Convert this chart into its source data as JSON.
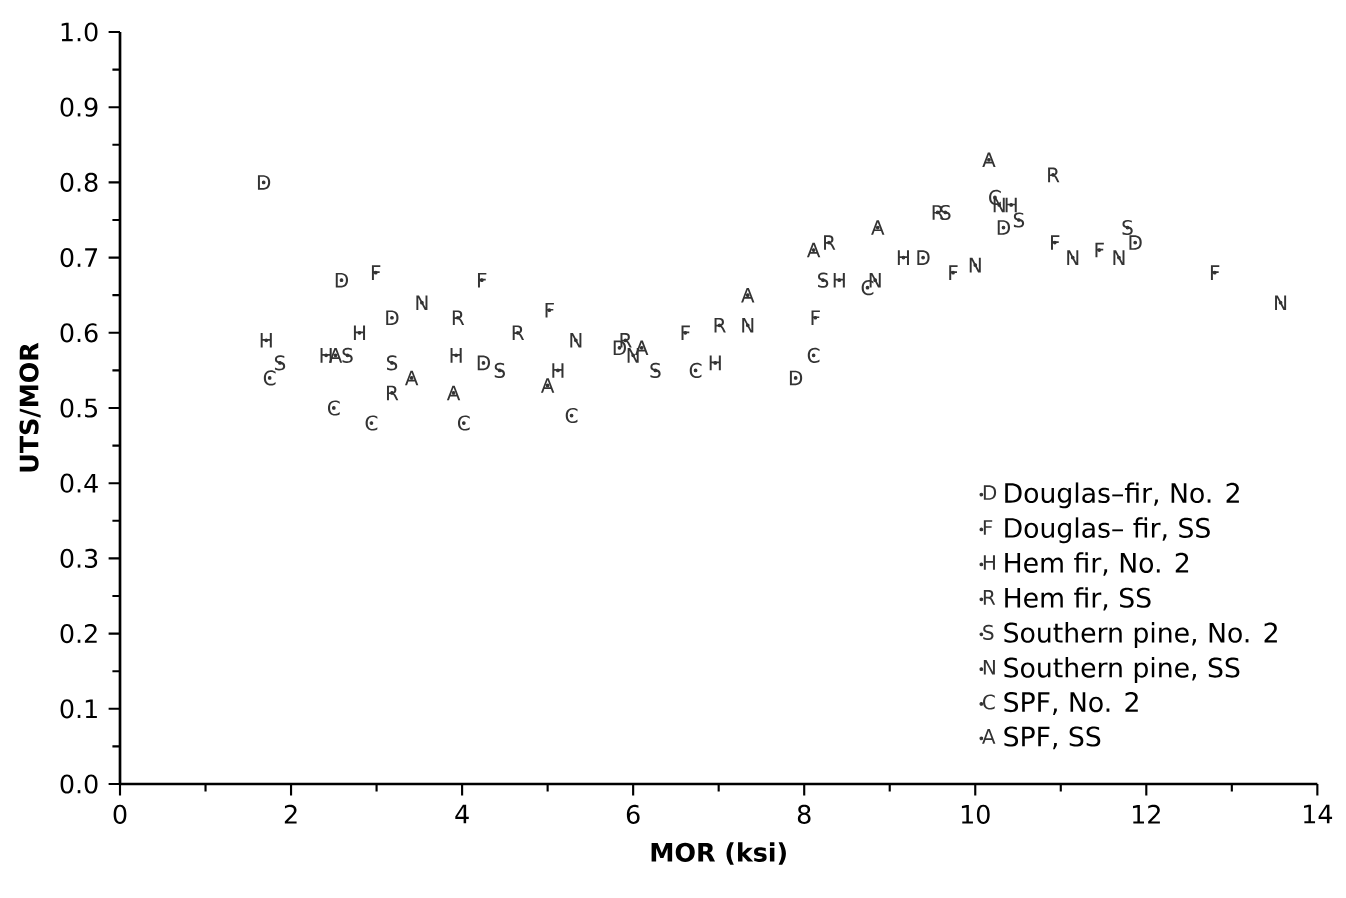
{
  "chart_data": {
    "type": "scatter",
    "xlabel": "MOR (ksi)",
    "ylabel": "UTS/MOR",
    "xlim": [
      0,
      14
    ],
    "xticks": [
      0,
      2,
      4,
      6,
      8,
      10,
      12,
      14
    ],
    "ylim": [
      0,
      1
    ],
    "yticks": [
      {
        "value": 0,
        "label": "0.0"
      },
      {
        "value": 0.1,
        "label": "0.1"
      },
      {
        "value": 0.2,
        "label": "0.2"
      },
      {
        "value": 0.3,
        "label": "0.3"
      },
      {
        "value": 0.4,
        "label": "0.4"
      },
      {
        "value": 0.5,
        "label": "0.5"
      },
      {
        "value": 0.6,
        "label": "0.6"
      },
      {
        "value": 0.7,
        "label": "0.7"
      },
      {
        "value": 0.8,
        "label": "0.8"
      },
      {
        "value": 0.9,
        "label": "0.9"
      },
      {
        "value": 1.0,
        "label": "1.0"
      }
    ],
    "legend": "bottom right",
    "series": [
      {
        "name": "Douglas–fir, No. 2",
        "color": "#333333",
        "x": [
          1.68,
          2.59,
          3.18,
          4.25,
          5.84,
          7.9,
          9.39,
          10.33,
          11.87
        ],
        "values": [
          0.8,
          0.67,
          0.62,
          0.56,
          0.58,
          0.54,
          0.7,
          0.74,
          0.72
        ],
        "value_labels": [
          "D",
          "D",
          "D",
          "D",
          "D",
          "D",
          "D",
          "D",
          "D"
        ]
      },
      {
        "name": "Douglas– fir, SS",
        "color": "#333333",
        "x": [
          2.99,
          4.23,
          5.02,
          6.61,
          8.13,
          9.74,
          10.93,
          11.45,
          12.8
        ],
        "values": [
          0.68,
          0.67,
          0.63,
          0.6,
          0.62,
          0.68,
          0.72,
          0.71,
          0.68
        ],
        "value_labels": [
          "F",
          "F",
          "F",
          "F",
          "F",
          "F",
          "F",
          "F",
          "F"
        ]
      },
      {
        "name": "Hem fir, No. 2",
        "color": "#333333",
        "x": [
          1.71,
          2.41,
          2.8,
          3.93,
          5.12,
          6.96,
          8.41,
          9.16,
          10.42
        ],
        "values": [
          0.59,
          0.57,
          0.6,
          0.57,
          0.55,
          0.56,
          0.67,
          0.7,
          0.77
        ],
        "value_labels": [
          "H",
          "H",
          "H",
          "H",
          "H",
          "H",
          "H",
          "H",
          "H"
        ]
      },
      {
        "name": "Hem fir, SS",
        "color": "#333333",
        "x": [
          3.95,
          4.65,
          3.18,
          5.91,
          7.01,
          8.29,
          9.56,
          10.91
        ],
        "values": [
          0.62,
          0.6,
          0.52,
          0.59,
          0.61,
          0.72,
          0.76,
          0.81
        ],
        "value_labels": [
          "R",
          "R",
          "R",
          "R",
          "R",
          "R",
          "R",
          "R"
        ]
      },
      {
        "name": "Southern pine, No. 2",
        "color": "#333333",
        "x": [
          1.87,
          2.66,
          3.18,
          4.44,
          6.26,
          8.22,
          9.65,
          10.51,
          11.78
        ],
        "values": [
          0.56,
          0.57,
          0.56,
          0.55,
          0.55,
          0.67,
          0.76,
          0.75,
          0.74
        ],
        "value_labels": [
          "S",
          "S",
          "S",
          "S",
          "S",
          "S",
          "S",
          "S",
          "S"
        ]
      },
      {
        "name": "Southern pine, SS",
        "color": "#333333",
        "x": [
          3.53,
          5.33,
          6.0,
          7.34,
          8.83,
          10.28,
          10.0,
          11.14,
          11.68,
          13.57
        ],
        "values": [
          0.64,
          0.59,
          0.57,
          0.61,
          0.67,
          0.77,
          0.69,
          0.7,
          0.7,
          0.64
        ],
        "value_labels": [
          "N",
          "N",
          "N",
          "N",
          "N",
          "N",
          "N",
          "N",
          "N",
          "N"
        ]
      },
      {
        "name": "SPF, No. 2",
        "color": "#333333",
        "x": [
          1.75,
          2.5,
          2.94,
          4.02,
          5.28,
          6.73,
          8.11,
          8.74,
          10.23
        ],
        "values": [
          0.54,
          0.5,
          0.48,
          0.48,
          0.49,
          0.55,
          0.57,
          0.66,
          0.78
        ],
        "value_labels": [
          "C",
          "C",
          "C",
          "C",
          "C",
          "C",
          "C",
          "C",
          "C"
        ]
      },
      {
        "name": "SPF, SS",
        "color": "#333333",
        "x": [
          2.52,
          3.41,
          3.9,
          5.0,
          6.1,
          7.34,
          8.11,
          8.86,
          10.16
        ],
        "values": [
          0.57,
          0.54,
          0.52,
          0.53,
          0.58,
          0.65,
          0.71,
          0.74,
          0.83
        ],
        "value_labels": [
          "A",
          "A",
          "A",
          "A",
          "A",
          "A",
          "A",
          "A",
          "A"
        ]
      }
    ]
  }
}
